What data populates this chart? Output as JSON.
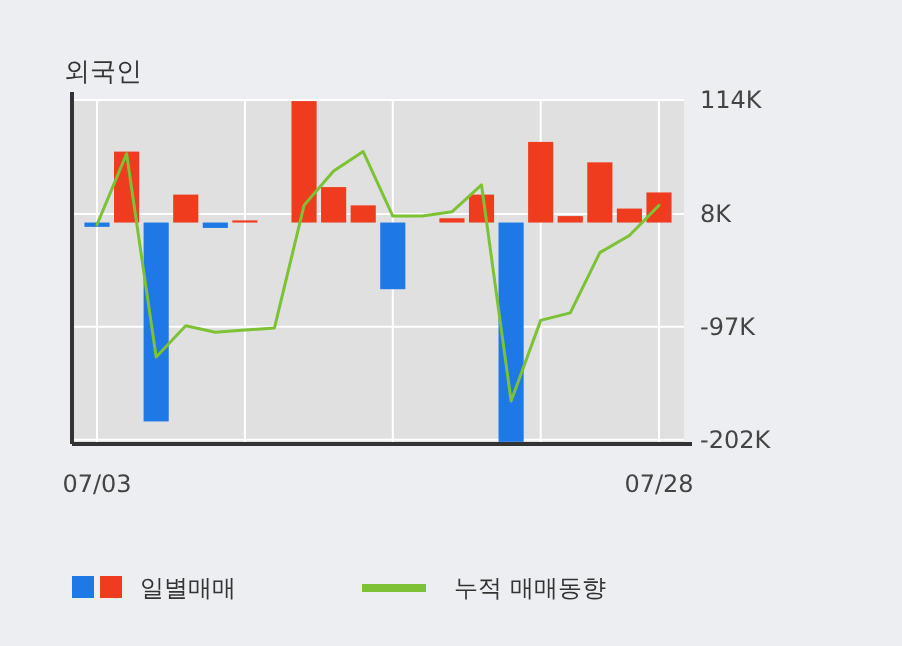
{
  "chart_data": {
    "type": "bar",
    "title": "외국인",
    "categories": [
      "07/03",
      null,
      null,
      null,
      null,
      null,
      null,
      null,
      null,
      null,
      null,
      null,
      null,
      null,
      null,
      null,
      null,
      null,
      null,
      "07/28"
    ],
    "series": [
      {
        "name": "일별매매",
        "colors": [
          "#1e78e6",
          "#f03c1e",
          "#1e78e6",
          "#f03c1e",
          "#1e78e6",
          "#f03c1e",
          "#f03c1e",
          "#f03c1e",
          "#f03c1e",
          "#f03c1e",
          "#1e78e6",
          "#f03c1e",
          "#f03c1e",
          "#f03c1e",
          "#1e78e6",
          "#f03c1e",
          "#f03c1e",
          "#f03c1e",
          "#f03c1e",
          "#f03c1e"
        ],
        "values": [
          -4,
          66,
          -185,
          26,
          -5,
          2,
          0,
          113,
          33,
          16,
          -62,
          0,
          4,
          26,
          -204,
          75,
          6,
          56,
          13,
          28
        ]
      },
      {
        "name": "누적 매매동향",
        "type": "line",
        "color": "#7cc234",
        "values": [
          -2,
          64,
          -125,
          -96,
          -102,
          -100,
          -98,
          16,
          48,
          66,
          6,
          6,
          10,
          35,
          -166,
          -91,
          -84,
          -28,
          -12,
          16
        ]
      }
    ],
    "ylim": [
      -206,
      114
    ],
    "yticks": [
      {
        "value": 114,
        "label": "114K"
      },
      {
        "value": 8,
        "label": "8K"
      },
      {
        "value": -97,
        "label": "-97K"
      },
      {
        "value": -202,
        "label": "-202K"
      }
    ],
    "grid": true,
    "legend": "bottom"
  }
}
